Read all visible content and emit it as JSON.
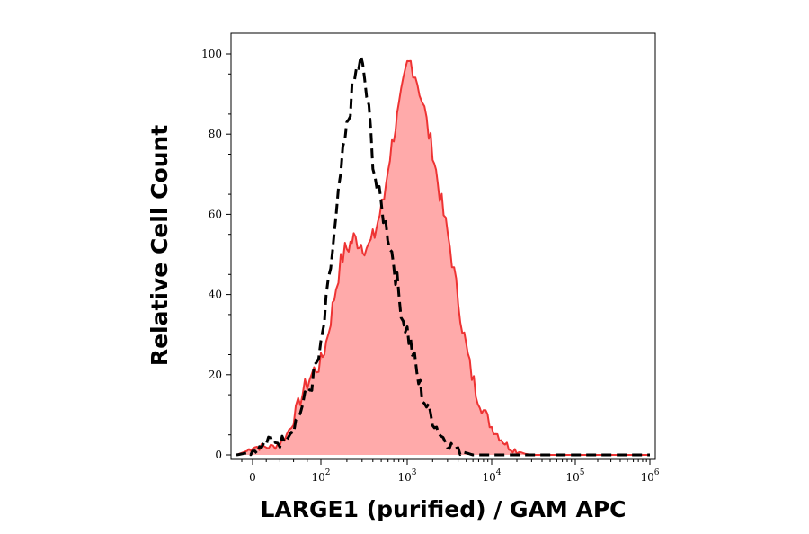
{
  "chart_data": {
    "type": "area",
    "title": "",
    "xlabel": "LARGE1 (purified) / GAM APC",
    "ylabel": "Relative Cell Count",
    "xscale": "biexponential",
    "xlim": [
      -30,
      1000000
    ],
    "ylim": [
      0,
      100
    ],
    "y_ticks": [
      "0",
      "20",
      "40",
      "60",
      "80",
      "100"
    ],
    "x_ticks": [
      {
        "base": "0",
        "exp": ""
      },
      {
        "base": "10",
        "exp": "2"
      },
      {
        "base": "10",
        "exp": "3"
      },
      {
        "base": "10",
        "exp": "4"
      },
      {
        "base": "10",
        "exp": "5"
      },
      {
        "base": "10",
        "exp": "6"
      }
    ],
    "grid": false,
    "legend": "none",
    "series": [
      {
        "style": "dashed-line",
        "color": "#000000",
        "points": [
          [
            -30,
            0
          ],
          [
            -10,
            0.5
          ],
          [
            0,
            1
          ],
          [
            10,
            1.5
          ],
          [
            20,
            3
          ],
          [
            30,
            4
          ],
          [
            40,
            3
          ],
          [
            50,
            5
          ],
          [
            60,
            7
          ],
          [
            70,
            11
          ],
          [
            80,
            15
          ],
          [
            90,
            20
          ],
          [
            100,
            26
          ],
          [
            115,
            37
          ],
          [
            130,
            47
          ],
          [
            150,
            58
          ],
          [
            170,
            70
          ],
          [
            190,
            78
          ],
          [
            210,
            84
          ],
          [
            230,
            90
          ],
          [
            260,
            96
          ],
          [
            290,
            98
          ],
          [
            320,
            94
          ],
          [
            360,
            85
          ],
          [
            400,
            74
          ],
          [
            450,
            66
          ],
          [
            500,
            62
          ],
          [
            560,
            58
          ],
          [
            630,
            53
          ],
          [
            700,
            48
          ],
          [
            800,
            40
          ],
          [
            900,
            34
          ],
          [
            1000,
            31
          ],
          [
            1150,
            26
          ],
          [
            1300,
            20
          ],
          [
            1500,
            15
          ],
          [
            1800,
            11
          ],
          [
            2100,
            8
          ],
          [
            2500,
            5
          ],
          [
            3000,
            3
          ],
          [
            3500,
            2
          ],
          [
            4000,
            1
          ],
          [
            5000,
            0.5
          ],
          [
            6000,
            0
          ],
          [
            1000000,
            0
          ]
        ]
      },
      {
        "style": "filled-area",
        "color": "#ee3333",
        "fill": "#ffaaaa",
        "points": [
          [
            -30,
            0
          ],
          [
            -10,
            1
          ],
          [
            0,
            2
          ],
          [
            10,
            2
          ],
          [
            20,
            2
          ],
          [
            30,
            2
          ],
          [
            40,
            3
          ],
          [
            50,
            5
          ],
          [
            60,
            9
          ],
          [
            70,
            14
          ],
          [
            80,
            18
          ],
          [
            90,
            21
          ],
          [
            100,
            23
          ],
          [
            115,
            28
          ],
          [
            130,
            34
          ],
          [
            150,
            42
          ],
          [
            170,
            48
          ],
          [
            190,
            51
          ],
          [
            210,
            52
          ],
          [
            240,
            54
          ],
          [
            280,
            53
          ],
          [
            320,
            52
          ],
          [
            360,
            52
          ],
          [
            420,
            55
          ],
          [
            480,
            60
          ],
          [
            540,
            64
          ],
          [
            600,
            72
          ],
          [
            700,
            80
          ],
          [
            800,
            86
          ],
          [
            900,
            92
          ],
          [
            1000,
            97
          ],
          [
            1100,
            98
          ],
          [
            1250,
            95
          ],
          [
            1400,
            91
          ],
          [
            1600,
            86
          ],
          [
            1800,
            80
          ],
          [
            2000,
            76
          ],
          [
            2300,
            68
          ],
          [
            2700,
            60
          ],
          [
            3200,
            52
          ],
          [
            3800,
            42
          ],
          [
            4500,
            32
          ],
          [
            5500,
            22
          ],
          [
            6500,
            16
          ],
          [
            8000,
            11
          ],
          [
            10000,
            7
          ],
          [
            13000,
            4
          ],
          [
            16000,
            2
          ],
          [
            20000,
            1
          ],
          [
            25000,
            0.3
          ],
          [
            30000,
            0
          ],
          [
            1000000,
            0
          ]
        ]
      }
    ]
  }
}
